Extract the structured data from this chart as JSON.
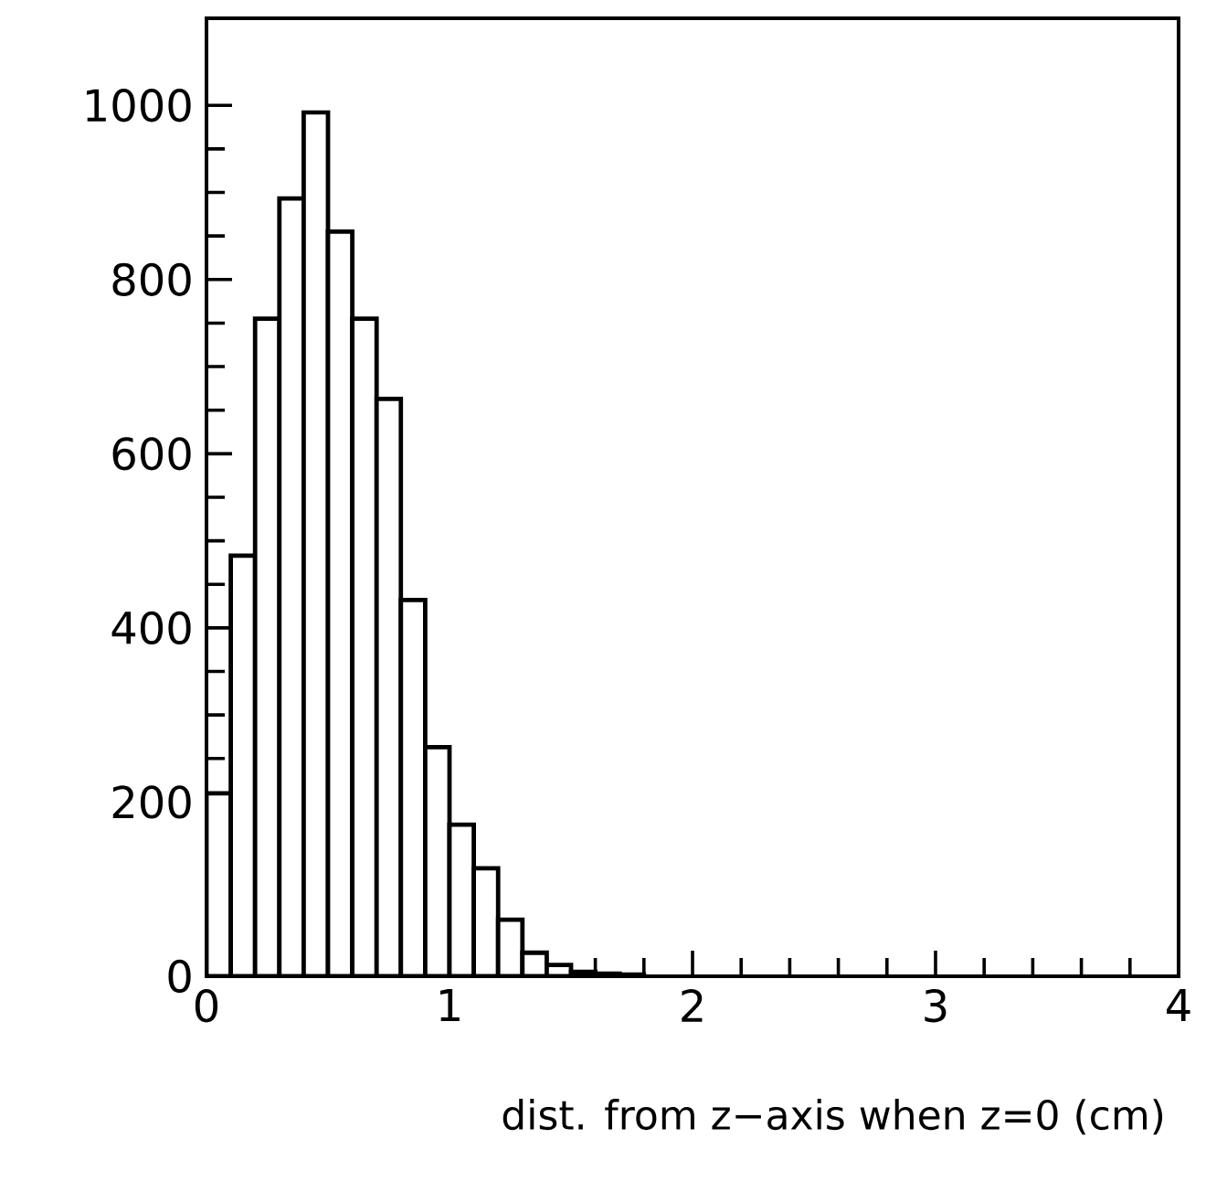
{
  "chart_data": {
    "type": "histogram",
    "xlabel": "dist. from z−axis when z=0 (cm)",
    "bins": [
      0,
      0.1,
      0.2,
      0.3,
      0.4,
      0.5,
      0.6,
      0.7,
      0.8,
      0.9,
      1.0,
      1.1,
      1.2,
      1.3,
      1.4,
      1.5,
      1.6,
      1.7,
      1.8
    ],
    "values": [
      210,
      483,
      755,
      893,
      992,
      855,
      755,
      663,
      432,
      263,
      174,
      124,
      65,
      27,
      13,
      5,
      3,
      2
    ],
    "color": "#000000",
    "xlim": [
      0,
      4
    ],
    "xticks": [
      0,
      1,
      2,
      3,
      4
    ],
    "ylim": [
      0,
      1100
    ],
    "yticks": [
      0,
      200,
      400,
      600,
      800,
      1000
    ]
  }
}
